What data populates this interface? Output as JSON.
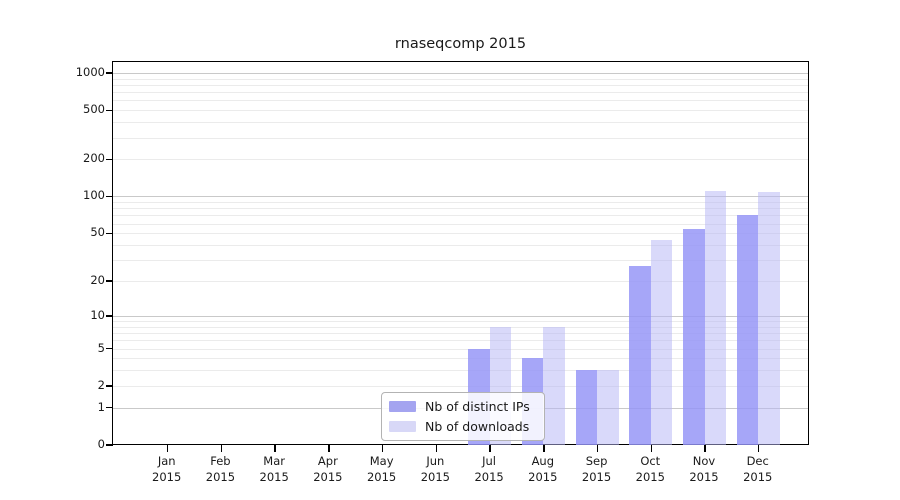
{
  "title": "rnaseqcomp 2015",
  "colors": {
    "bar_distinct_ips": "#a6a6f4",
    "bar_downloads": "#d9d9f9",
    "grid_major": "#c9c9c9",
    "grid_minor": "#ebebeb",
    "spine": "#000000"
  },
  "chart_data": {
    "type": "bar",
    "title": "rnaseqcomp 2015",
    "categories": [
      "Jan 2015",
      "Feb 2015",
      "Mar 2015",
      "Apr 2015",
      "May 2015",
      "Jun 2015",
      "Jul 2015",
      "Aug 2015",
      "Sep 2015",
      "Oct 2015",
      "Nov 2015",
      "Dec 2015"
    ],
    "series": [
      {
        "name": "Nb of distinct IPs",
        "values": [
          0,
          0,
          0,
          0,
          0,
          0,
          5,
          4,
          3,
          27,
          54,
          70
        ]
      },
      {
        "name": "Nb of downloads",
        "values": [
          0,
          0,
          0,
          0,
          0,
          0,
          8,
          8,
          3,
          44,
          111,
          108
        ]
      }
    ],
    "xlabel": "",
    "ylabel": "",
    "y_scale": "log1p",
    "y_ticks": [
      0,
      1,
      2,
      5,
      10,
      20,
      50,
      100,
      200,
      500,
      1000
    ],
    "ylim": [
      0,
      1230
    ],
    "grid": "on",
    "legend_position": "inside-lower-center"
  }
}
